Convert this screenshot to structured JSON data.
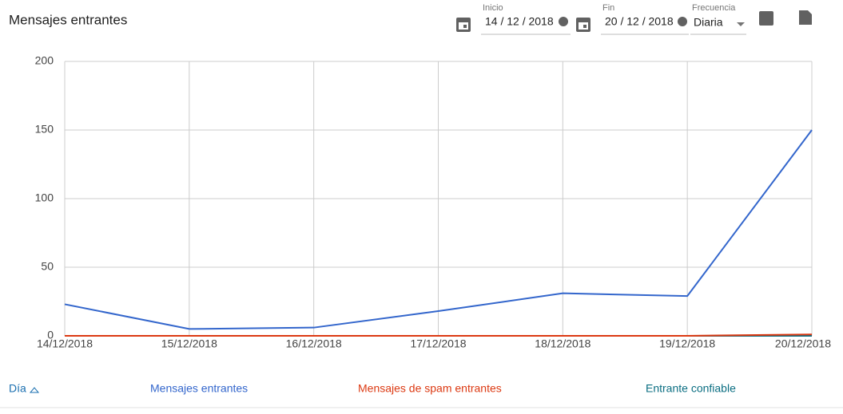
{
  "header": {
    "title": "Mensajes entrantes",
    "filters": {
      "start_label": "Inicio",
      "start_value": "14 / 12 / 2018",
      "end_label": "Fin",
      "end_value": "20 / 12 / 2018",
      "frequency_label": "Frecuencia",
      "frequency_value": "Diaria"
    }
  },
  "chart_data": {
    "type": "line",
    "categories": [
      "14/12/2018",
      "15/12/2018",
      "16/12/2018",
      "17/12/2018",
      "18/12/2018",
      "19/12/2018",
      "20/12/2018"
    ],
    "series": [
      {
        "name": "Mensajes entrantes",
        "color": "#3366cc",
        "values": [
          23,
          5,
          6,
          18,
          31,
          29,
          150
        ]
      },
      {
        "name": "Mensajes de spam entrantes",
        "color": "#dc3912",
        "values": [
          0,
          0,
          0,
          0,
          0,
          0,
          1
        ]
      },
      {
        "name": "Entrante confiable",
        "color": "#0b6e82",
        "values": [
          0,
          0,
          0,
          0,
          0,
          0,
          0
        ]
      }
    ],
    "ylim": [
      0,
      200
    ],
    "yticks": [
      0,
      50,
      100,
      150,
      200
    ],
    "grid": true
  },
  "table": {
    "first_column": "Día"
  }
}
